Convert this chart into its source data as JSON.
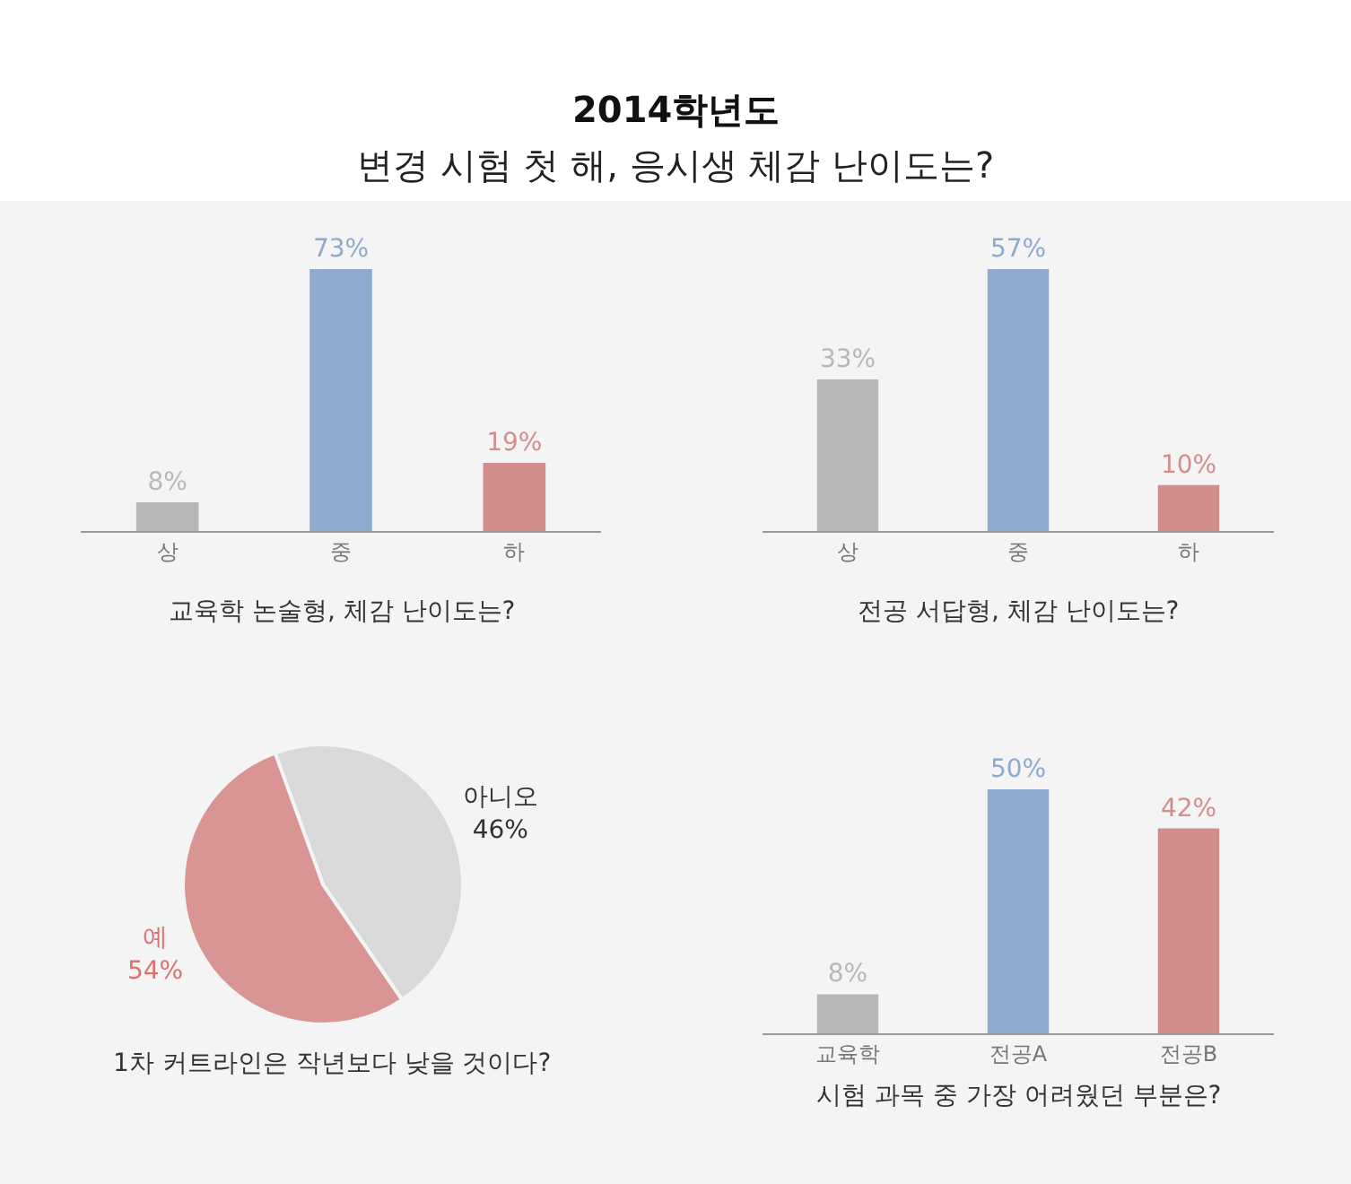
{
  "chart_data": [
    {
      "type": "other",
      "title": "2014학년도",
      "subtitle": "변경 시험 첫 해, 응시생 체감 난이도는?"
    },
    {
      "type": "bar",
      "title": "교육학 논술형, 체감 난이도는?",
      "categories": [
        "상",
        "중",
        "하"
      ],
      "values": [
        8,
        73,
        19
      ],
      "colors": [
        "#b7b7b7",
        "#8eabcf",
        "#d28d8c"
      ],
      "value_labels": [
        "8%",
        "73%",
        "19%"
      ]
    },
    {
      "type": "bar",
      "title": "전공 서답형, 체감 난이도는?",
      "categories": [
        "상",
        "중",
        "하"
      ],
      "values": [
        33,
        57,
        10
      ],
      "colors": [
        "#b7b7b7",
        "#8eabcf",
        "#d28d8c"
      ],
      "value_labels": [
        "33%",
        "57%",
        "10%"
      ]
    },
    {
      "type": "pie",
      "title": "1차 커트라인은 작년보다 낮을 것이다?",
      "categories": [
        "아니오",
        "예"
      ],
      "values": [
        46,
        54
      ],
      "colors": [
        "#d9d9d9",
        "#d99594"
      ],
      "value_labels": [
        "46%",
        "54%"
      ]
    },
    {
      "type": "bar",
      "title": "시험 과목 중 가장 어려웠던 부분은?",
      "categories": [
        "교육학",
        "전공A",
        "전공B"
      ],
      "values": [
        8,
        50,
        42
      ],
      "colors": [
        "#b7b7b7",
        "#8eabcf",
        "#d28d8c"
      ],
      "value_labels": [
        "8%",
        "50%",
        "42%"
      ]
    }
  ]
}
